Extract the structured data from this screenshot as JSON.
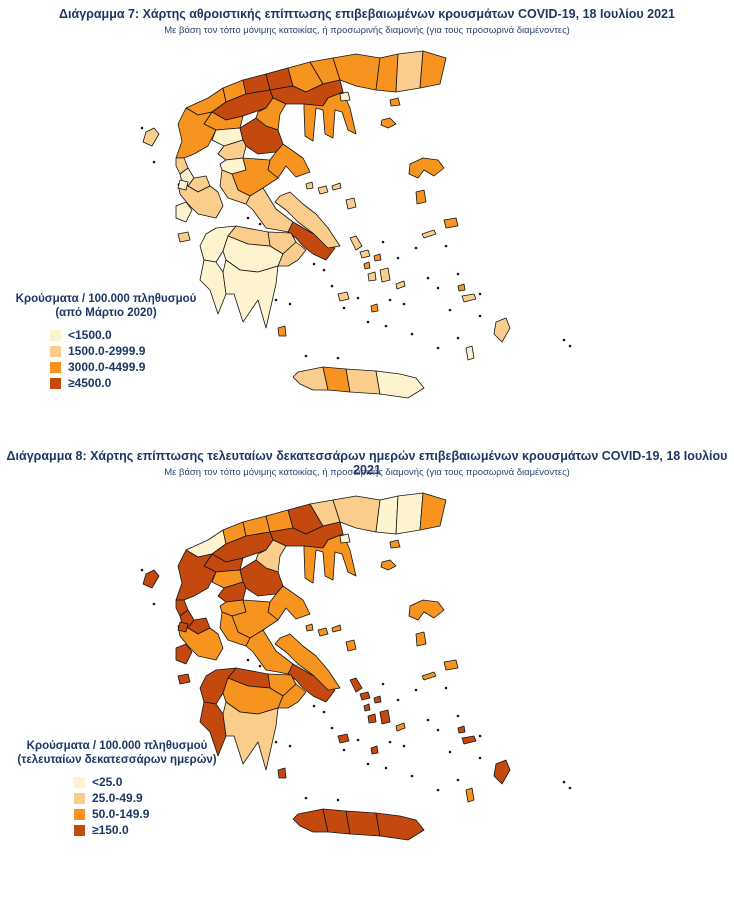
{
  "page": {
    "background": "#ffffff",
    "text_color": "#1e3766"
  },
  "figures": [
    {
      "title": "Διάγραμμα 7: Χάρτης αθροιστικής επίπτωσης επιβεβαιωμένων κρουσμάτων COVID-19, 18 Ιουλίου 2021",
      "subtitle": "Με βάση τον τόπο μόνιμης κατοικίας, ή προσωρινής διαμονής (για τους προσωρινά διαμένοντες)",
      "legend": {
        "title_line1": "Κρούσματα / 100.000 πληθυσμού",
        "title_line2": "(από Μάρτιο 2020)",
        "items": [
          {
            "label": "<1500.0",
            "color": "#fdf3ce"
          },
          {
            "label": "1500.0-2999.9",
            "color": "#fbcd8c"
          },
          {
            "label": "3000.0-4499.9",
            "color": "#f7941f"
          },
          {
            "label": "≥4500.0",
            "color": "#c3490f"
          }
        ]
      },
      "region_categories": {
        "kastoria": 3,
        "florina": 3,
        "pella": 4,
        "kilkis": 4,
        "serres": 3,
        "drama": 3,
        "kavala": 3,
        "xanthi": 3,
        "rodopi": 2,
        "evros": 3,
        "thessaloniki": 4,
        "chalkidiki": 3,
        "kozani": 4,
        "grevena": 3,
        "pieria": 3,
        "ioannina": 3,
        "thesprotia": 2,
        "preveza": 1,
        "arta": 2,
        "trikala": 1,
        "larissa": 4,
        "karditsa": 2,
        "magnesia": 3,
        "aetolia": 2,
        "evrytania": 1,
        "fthiotida": 3,
        "fokida": 2,
        "viotia": 2,
        "attica": 4,
        "evia": 2,
        "corinthia": 2,
        "achaia": 2,
        "ilia": 1,
        "arcadia": 1,
        "argolida": 2,
        "messinia": 1,
        "laconia": 1,
        "corfu": 2,
        "lefkada": 1,
        "kefalonia": 1,
        "zakynthos": 2,
        "kythira": 3,
        "thasos": 1,
        "samothraki": 3,
        "limnos": 3,
        "lesvos": 3,
        "chios": 3,
        "samos": 3,
        "ikaria": 2,
        "skiathos": 2,
        "skopelos": 2,
        "alonissos": 2,
        "skyros": 2,
        "andros": 2,
        "tinos": 2,
        "mykonos": 3,
        "syros": 3,
        "paros": 2,
        "naxos": 2,
        "milos": 2,
        "santorini": 3,
        "amorgos": 2,
        "kalymnos": 3,
        "kos": 2,
        "rhodes": 2,
        "karpathos": 1,
        "chania": 2,
        "rethymno": 3,
        "heraklion": 2,
        "lasithi": 1
      }
    },
    {
      "title": "Διάγραμμα 8: Χάρτης επίπτωσης τελευταίων δεκατεσσάρων ημερών επιβεβαιωμένων κρουσμάτων COVID-19, 18 Ιουλίου 2021",
      "subtitle": "Με βάση τον τόπο μόνιμης κατοικίας, ή προσωρινής διαμονής (για τους προσωρινά διαμένοντες)",
      "legend": {
        "title_line1": "Κρούσματα / 100.000 πληθυσμού",
        "title_line2": "(τελευταίων δεκατεσσάρων ημερών)",
        "items": [
          {
            "label": "<25.0",
            "color": "#fdf3ce"
          },
          {
            "label": "25.0-49.9",
            "color": "#fbcd8c"
          },
          {
            "label": "50.0-149.9",
            "color": "#f7941f"
          },
          {
            "label": "≥150.0",
            "color": "#c3490f"
          }
        ]
      },
      "region_categories": {
        "kastoria": 1,
        "florina": 3,
        "pella": 3,
        "kilkis": 3,
        "serres": 4,
        "drama": 2,
        "kavala": 2,
        "xanthi": 1,
        "rodopi": 1,
        "evros": 3,
        "thessaloniki": 4,
        "chalkidiki": 3,
        "kozani": 4,
        "grevena": 4,
        "pieria": 2,
        "ioannina": 4,
        "thesprotia": 4,
        "preveza": 4,
        "arta": 4,
        "trikala": 3,
        "larissa": 4,
        "karditsa": 4,
        "magnesia": 3,
        "aetolia": 3,
        "evrytania": 3,
        "fthiotida": 3,
        "fokida": 3,
        "viotia": 3,
        "attica": 4,
        "evia": 3,
        "corinthia": 3,
        "achaia": 4,
        "ilia": 4,
        "arcadia": 3,
        "argolida": 3,
        "messinia": 4,
        "laconia": 2,
        "corfu": 4,
        "lefkada": 4,
        "kefalonia": 4,
        "zakynthos": 4,
        "kythira": 4,
        "thasos": 1,
        "samothraki": 3,
        "limnos": 3,
        "lesvos": 3,
        "chios": 3,
        "samos": 3,
        "ikaria": 3,
        "skiathos": 3,
        "skopelos": 3,
        "alonissos": 3,
        "skyros": 3,
        "andros": 4,
        "tinos": 4,
        "mykonos": 4,
        "syros": 4,
        "paros": 4,
        "naxos": 4,
        "milos": 4,
        "santorini": 4,
        "amorgos": 3,
        "kalymnos": 4,
        "kos": 4,
        "rhodes": 4,
        "karpathos": 3,
        "chania": 4,
        "rethymno": 4,
        "heraklion": 4,
        "lasithi": 4
      }
    }
  ],
  "chart_data": [
    {
      "type": "choropleth_map",
      "geography": "Greece, regional units",
      "title": "Διάγραμμα 7: Χάρτης αθροιστικής επίπτωσης επιβεβαιωμένων κρουσμάτων COVID-19, 18 Ιουλίου 2021",
      "metric": "Κρούσματα / 100.000 πληθυσμού (από Μάρτιο 2020)",
      "classes": [
        "<1500.0",
        "1500.0-2999.9",
        "3000.0-4499.9",
        "≥4500.0"
      ],
      "class_colors": [
        "#fdf3ce",
        "#fbcd8c",
        "#f7941f",
        "#c3490f"
      ],
      "legend_position": "left"
    },
    {
      "type": "choropleth_map",
      "geography": "Greece, regional units",
      "title": "Διάγραμμα 8: Χάρτης επίπτωσης τελευταίων δεκατεσσάρων ημερών επιβεβαιωμένων κρουσμάτων COVID-19, 18 Ιουλίου 2021",
      "metric": "Κρούσματα / 100.000 πληθυσμού (τελευταίων δεκατεσσάρων ημερών)",
      "classes": [
        "<25.0",
        "25.0-49.9",
        "50.0-149.9",
        "≥150.0"
      ],
      "class_colors": [
        "#fdf3ce",
        "#fbcd8c",
        "#f7941f",
        "#c3490f"
      ],
      "legend_position": "left"
    }
  ]
}
